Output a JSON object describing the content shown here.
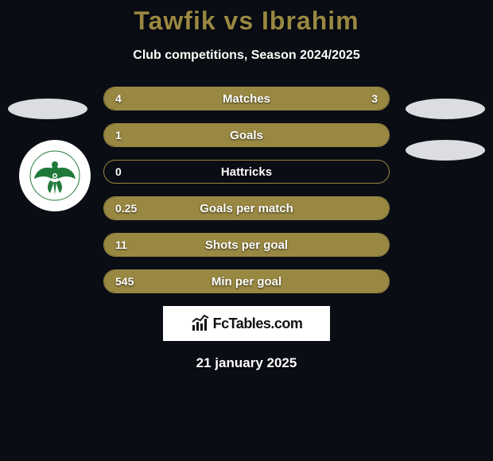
{
  "title": {
    "text": "Tawfik vs Ibrahim",
    "color": "#998842"
  },
  "subtitle": "Club competitions, Season 2024/2025",
  "accent": "#998842",
  "background": "#0a0d14",
  "stats": {
    "rows": [
      {
        "label": "Matches",
        "left": "4",
        "right": "3",
        "fill_left_pct": 57,
        "fill_right_pct": 43
      },
      {
        "label": "Goals",
        "left": "1",
        "right": "",
        "fill_left_pct": 100,
        "fill_right_pct": 0
      },
      {
        "label": "Hattricks",
        "left": "0",
        "right": "",
        "fill_left_pct": 0,
        "fill_right_pct": 0
      },
      {
        "label": "Goals per match",
        "left": "0.25",
        "right": "",
        "fill_left_pct": 100,
        "fill_right_pct": 0
      },
      {
        "label": "Shots per goal",
        "left": "11",
        "right": "",
        "fill_left_pct": 100,
        "fill_right_pct": 0
      },
      {
        "label": "Min per goal",
        "left": "545",
        "right": "",
        "fill_left_pct": 100,
        "fill_right_pct": 0
      }
    ],
    "label_color": "#ffffff",
    "value_color": "#ffffff"
  },
  "flags": {
    "placeholder_color": "#dcdde1"
  },
  "crest": {
    "bird_color": "#1f7a3a",
    "ring_bg": "#ffffff"
  },
  "brand": {
    "name": "FcTables.com",
    "bg": "#ffffff",
    "text_color": "#111111",
    "icon_color": "#111111"
  },
  "date": "21 january 2025"
}
